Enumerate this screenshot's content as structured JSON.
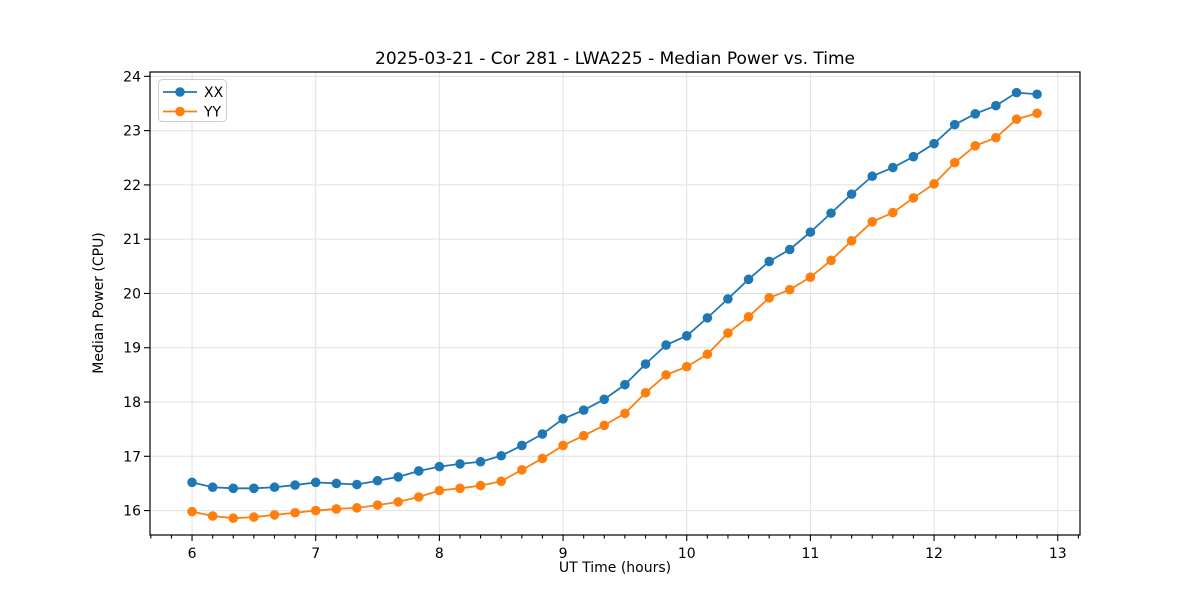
{
  "background": "#ffffff",
  "chart_data": {
    "type": "line",
    "title": "2025-03-21 - Cor 281 - LWA225 - Median Power vs. Time",
    "xlabel": "UT Time (hours)",
    "ylabel": "Median Power (CPU)",
    "xlim": [
      5.66,
      13.18
    ],
    "ylim": [
      15.55,
      24.08
    ],
    "x_major_ticks": [
      6,
      7,
      8,
      9,
      10,
      11,
      12,
      13
    ],
    "y_major_ticks": [
      16,
      17,
      18,
      19,
      20,
      21,
      22,
      23,
      24
    ],
    "x_minor_step": 0.1666667,
    "grid": true,
    "legend_position": "upper-left",
    "x": [
      6.0,
      6.167,
      6.333,
      6.5,
      6.667,
      6.833,
      7.0,
      7.167,
      7.333,
      7.5,
      7.667,
      7.833,
      8.0,
      8.167,
      8.333,
      8.5,
      8.667,
      8.833,
      9.0,
      9.167,
      9.333,
      9.5,
      9.667,
      9.833,
      10.0,
      10.167,
      10.333,
      10.5,
      10.667,
      10.833,
      11.0,
      11.167,
      11.333,
      11.5,
      11.667,
      11.833,
      12.0,
      12.167,
      12.333,
      12.5,
      12.667,
      12.833
    ],
    "series": [
      {
        "name": "XX",
        "color": "#1f77b4",
        "values": [
          16.52,
          16.43,
          16.41,
          16.41,
          16.43,
          16.47,
          16.52,
          16.5,
          16.48,
          16.55,
          16.62,
          16.73,
          16.81,
          16.86,
          16.9,
          17.01,
          17.2,
          17.41,
          17.69,
          17.85,
          18.05,
          18.32,
          18.7,
          19.05,
          19.22,
          19.55,
          19.9,
          20.26,
          20.59,
          20.81,
          21.13,
          21.48,
          21.83,
          22.16,
          22.32,
          22.52,
          22.76,
          23.11,
          23.31,
          23.46,
          23.7,
          23.67
        ]
      },
      {
        "name": "YY",
        "color": "#ff7f0e",
        "values": [
          15.98,
          15.9,
          15.86,
          15.88,
          15.92,
          15.96,
          16.0,
          16.03,
          16.05,
          16.1,
          16.16,
          16.25,
          16.37,
          16.41,
          16.46,
          16.54,
          16.75,
          16.96,
          17.2,
          17.38,
          17.57,
          17.79,
          18.17,
          18.5,
          18.65,
          18.88,
          19.27,
          19.57,
          19.92,
          20.07,
          20.3,
          20.61,
          20.97,
          21.32,
          21.49,
          21.76,
          22.02,
          22.41,
          22.72,
          22.87,
          23.21,
          23.32
        ]
      }
    ]
  }
}
